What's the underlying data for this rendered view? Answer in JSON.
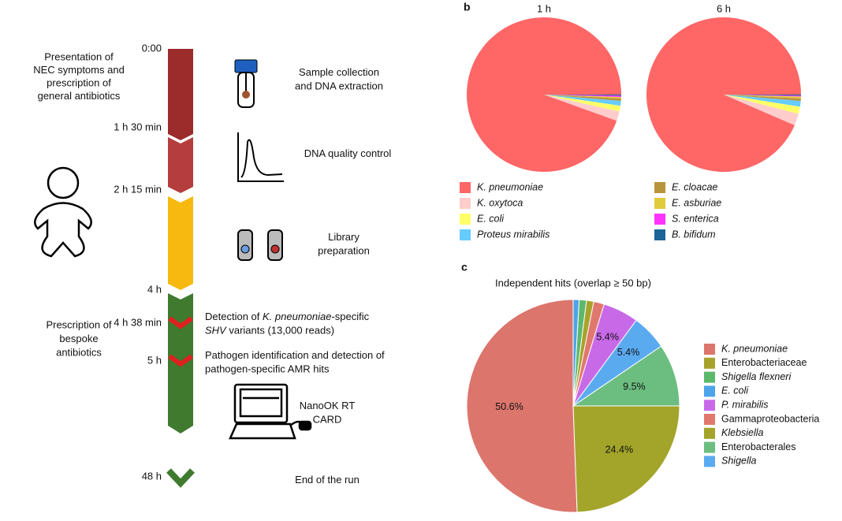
{
  "panel_labels": [
    "b",
    "c"
  ],
  "timeline": {
    "times": [
      "0:00",
      "1 h 30 min",
      "2 h 15 min",
      "4 h",
      "4 h 38 min",
      "5 h",
      "48 h"
    ],
    "left_notes": [
      {
        "lines": [
          "Presentation of",
          "NEC symptoms and",
          "prescription of",
          "general antibiotics"
        ]
      },
      {
        "lines": [
          "Prescription of",
          "bespoke",
          "antibiotics"
        ]
      }
    ],
    "steps": [
      {
        "lines": [
          [
            "Sample collection"
          ],
          [
            "and DNA extraction"
          ]
        ]
      },
      {
        "lines": [
          [
            "DNA quality control"
          ]
        ]
      },
      {
        "lines": [
          [
            "Library"
          ],
          [
            "preparation"
          ]
        ]
      },
      {
        "lines": [
          [
            "Detection of ",
            {
              "italic": "K. pneumoniae"
            },
            "-specific"
          ],
          [
            {
              "italic": "SHV"
            },
            " variants (13,000 reads)"
          ]
        ]
      },
      {
        "lines": [
          [
            "Pathogen identification and detection of"
          ],
          [
            "pathogen-specific AMR hits"
          ]
        ]
      },
      {
        "lines": [
          [
            "NanoOK RT"
          ],
          [
            "CARD"
          ]
        ]
      },
      {
        "lines": [
          [
            "End of the run"
          ]
        ]
      }
    ]
  },
  "chart_data": [
    {
      "type": "pie",
      "title": "1 h",
      "categories": [
        "K. pneumoniae",
        "K. oxytoca",
        "E. coli",
        "Proteus mirabilis",
        "E. cloacae",
        "E. asburiae",
        "S. enterica",
        "B. bifidum"
      ],
      "values": [
        94.5,
        2,
        1.2,
        1,
        0.5,
        0.3,
        0.3,
        0.2
      ],
      "colors": [
        "#ff6666",
        "#ffcccc",
        "#ffff66",
        "#66ccff",
        "#b8943a",
        "#e0cc3a",
        "#ff33ff",
        "#1a6699"
      ]
    },
    {
      "type": "pie",
      "title": "6 h",
      "categories": [
        "K. pneumoniae",
        "K. oxytoca",
        "E. coli",
        "Proteus mirabilis",
        "E. cloacae",
        "E. asburiae",
        "S. enterica",
        "B. bifidum"
      ],
      "values": [
        93.5,
        2.5,
        1.5,
        1.2,
        0.5,
        0.4,
        0.2,
        0.2
      ],
      "colors": [
        "#ff6666",
        "#ffcccc",
        "#ffff66",
        "#66ccff",
        "#b8943a",
        "#e0cc3a",
        "#ff33ff",
        "#1a6699"
      ],
      "legend": true
    },
    {
      "type": "pie",
      "title": "Independent hits (overlap ≥ 50 bp)",
      "categories": [
        "K. pneumoniae",
        "Klebsiella",
        "Enterobacterales",
        "Shigella",
        "P. mirabilis",
        "Gammaproteobacteria",
        "Enterobacteriaceae",
        "Shigella flexneri",
        "E. coli"
      ],
      "values": [
        50.6,
        24.4,
        9.5,
        5.4,
        5.4,
        1.6,
        1.1,
        1.1,
        0.9
      ],
      "value_labels": [
        "50.6%",
        "24.4%",
        "9.5%",
        "5.4%",
        "5.4%",
        null,
        null,
        null,
        null
      ],
      "italic": [
        true,
        true,
        false,
        true,
        true,
        false,
        false,
        true,
        true
      ],
      "colors": [
        "#dc756c",
        "#a3a52a",
        "#6cbe80",
        "#5aaaf0",
        "#c86ae8",
        "#e0786e",
        "#a8a32c",
        "#5cb86c",
        "#4ea4e8"
      ],
      "legend": true
    }
  ]
}
